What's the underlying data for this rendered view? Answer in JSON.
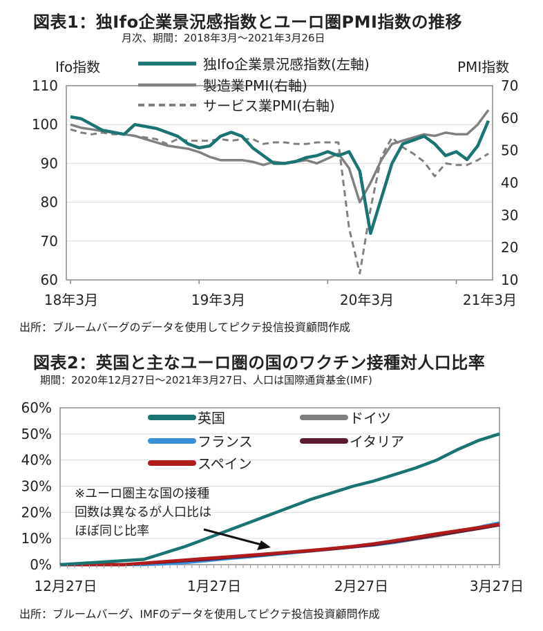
{
  "chart1": {
    "title": "図表1：独Ifo企業景況感指数とユーロ圏PMI指数の推移",
    "subtitle": "月次、期間：2018年3月～2021年3月26日",
    "source": "出所：ブルームバーグのデータを使用してピクテ投信投資顧問作成",
    "left_axis_title": "Ifo指数",
    "right_axis_title": "PMI指数",
    "colors": {
      "ifo": "#1b7472",
      "manufacturing": "#808080",
      "services": "#808080"
    },
    "chart_data": {
      "type": "line",
      "x_labels": [
        "18年3月",
        "19年3月",
        "20年3月",
        "21年3月"
      ],
      "ylim_left": [
        60,
        110
      ],
      "ylim_right": [
        10,
        70
      ],
      "yticks_left": [
        "110",
        "100",
        "90",
        "80",
        "70",
        "60"
      ],
      "yticks_right": [
        "70",
        "60",
        "50",
        "40",
        "30",
        "20",
        "10"
      ],
      "grid": true,
      "legend": "top-center",
      "series": [
        {
          "name": "独Ifo企業景況感指数(左軸)",
          "axis": "left",
          "values": [
            102.0,
            101.5,
            100.0,
            98.5,
            98.0,
            97.5,
            100.0,
            99.5,
            99.0,
            98.0,
            97.0,
            95.0,
            94.0,
            94.5,
            97.0,
            98.0,
            97.0,
            94.0,
            92.0,
            90.0,
            90.0,
            90.5,
            91.5,
            92.0,
            93.0,
            92.0,
            93.0,
            88.0,
            72.0,
            81.0,
            90.0,
            95.0,
            96.0,
            97.0,
            95.0,
            92.0,
            93.0,
            91.0,
            94.5,
            101.0
          ]
        },
        {
          "name": "製造業PMI(右軸)",
          "axis": "right",
          "values": [
            58.0,
            57.0,
            56.5,
            56.0,
            55.5,
            55.0,
            54.5,
            53.5,
            52.5,
            51.5,
            51.0,
            50.5,
            49.5,
            48.0,
            47.0,
            47.0,
            47.0,
            46.5,
            45.5,
            46.5,
            46.0,
            46.5,
            47.0,
            46.0,
            47.5,
            49.0,
            44.5,
            34.0,
            40.0,
            47.0,
            52.0,
            53.0,
            54.0,
            55.0,
            54.5,
            55.5,
            55.0,
            55.0,
            58.0,
            62.5
          ]
        },
        {
          "name": "サービス業PMI(右軸)",
          "axis": "right",
          "values": [
            56.5,
            55.5,
            55.0,
            55.5,
            55.0,
            55.0,
            54.5,
            54.0,
            53.5,
            52.0,
            53.5,
            53.0,
            53.0,
            53.0,
            53.5,
            53.0,
            53.5,
            53.5,
            52.0,
            52.5,
            52.5,
            52.0,
            52.0,
            52.5,
            52.5,
            52.5,
            26.0,
            12.0,
            32.0,
            48.0,
            54.0,
            51.0,
            49.0,
            46.5,
            42.0,
            46.0,
            45.5,
            45.5,
            47.0,
            49.0
          ]
        }
      ]
    }
  },
  "chart2": {
    "title": "図表2：英国と主なユーロ圏の国のワクチン接種対人口比率",
    "subtitle": "期間：2020年12月27日～2021年3月27日、人口は国際通貨基金(IMF)",
    "source": "出所：ブルームバーグ、IMFのデータを使用してピクテ投信投資顧問作成",
    "annotation": [
      "※ユーロ圏主な国の接種",
      "回数は異なるが人口比は",
      "ほぼ同じ比率"
    ],
    "colors": {
      "uk": "#1b7472",
      "germany": "#808080",
      "france": "#3a8fd9",
      "italy": "#5c1a33",
      "spain": "#b01b1b"
    },
    "chart_data": {
      "type": "line",
      "x_labels": [
        "12月27日",
        "1月27日",
        "2月27日",
        "3月27日"
      ],
      "ylim": [
        0,
        60
      ],
      "yticks": [
        "60%",
        "50%",
        "40%",
        "30%",
        "20%",
        "10%",
        "0%"
      ],
      "grid": true,
      "legend": "top",
      "series": [
        {
          "name": "英国",
          "values": [
            0,
            0.5,
            1.0,
            1.5,
            2.0,
            4.5,
            7.0,
            10.0,
            13.0,
            16.0,
            19.0,
            22.0,
            25.0,
            27.5,
            30.0,
            32.0,
            34.5,
            37.0,
            40.0,
            44.0,
            47.5,
            50.0
          ]
        },
        {
          "name": "ドイツ",
          "values": [
            0,
            0,
            0,
            0,
            0.3,
            0.8,
            1.3,
            1.8,
            2.5,
            3.0,
            3.8,
            4.5,
            5.2,
            6.0,
            6.8,
            7.5,
            8.5,
            9.8,
            11.0,
            12.5,
            14.0,
            15.5
          ]
        },
        {
          "name": "フランス",
          "values": [
            0,
            0,
            0,
            0,
            0,
            0.3,
            0.8,
            1.5,
            2.3,
            3.0,
            3.7,
            4.5,
            5.3,
            6.0,
            6.8,
            7.5,
            8.6,
            10.0,
            11.3,
            12.8,
            14.3,
            16.0
          ]
        },
        {
          "name": "イタリア",
          "values": [
            0,
            0,
            0,
            0,
            0.5,
            1.0,
            1.5,
            2.0,
            2.7,
            3.3,
            4.0,
            4.7,
            5.3,
            6.0,
            6.8,
            7.7,
            8.8,
            10.0,
            11.3,
            12.5,
            13.8,
            15.2
          ]
        },
        {
          "name": "スペイン",
          "values": [
            0,
            0,
            0,
            0,
            0.6,
            1.2,
            1.8,
            2.4,
            3.0,
            3.6,
            4.2,
            4.8,
            5.5,
            6.2,
            7.0,
            8.0,
            9.2,
            10.5,
            11.8,
            13.0,
            14.2,
            15.5
          ]
        }
      ]
    }
  }
}
